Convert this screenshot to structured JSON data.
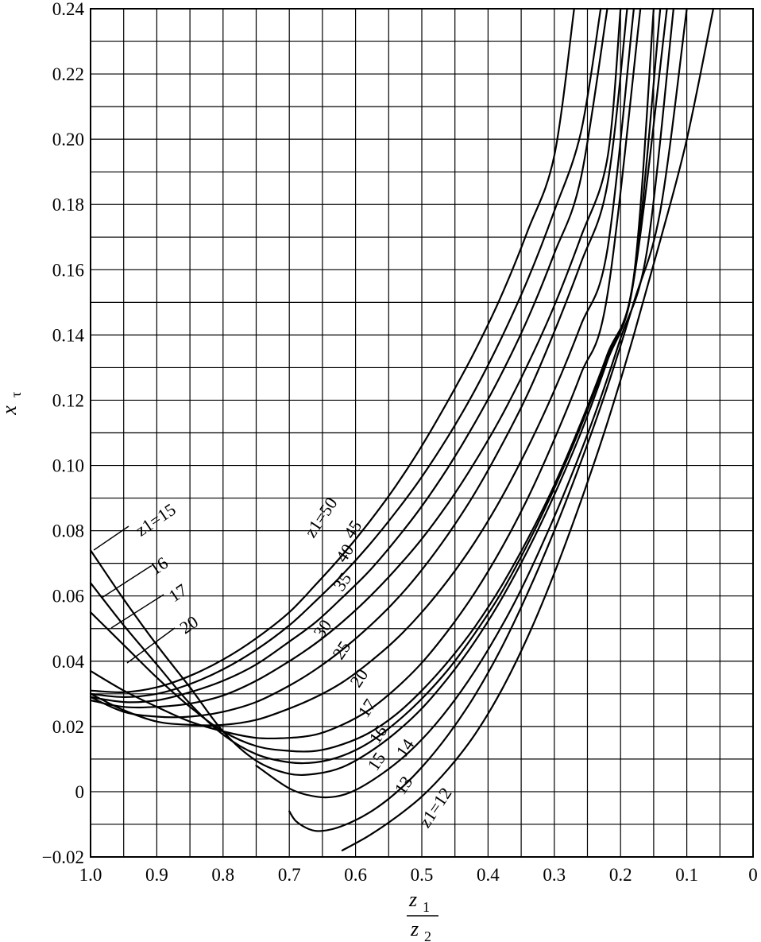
{
  "chart_data": {
    "type": "line",
    "title": "",
    "xlabel": {
      "num": "z",
      "num_sub": "1",
      "den": "z",
      "den_sub": "2"
    },
    "ylabel": {
      "base": "x",
      "sub": "τ"
    },
    "xlim": [
      1.0,
      0.0
    ],
    "ylim": [
      -0.02,
      0.24
    ],
    "x_reversed": true,
    "grid": true,
    "x_ticks": [
      "1.0",
      "0.9",
      "0.8",
      "0.7",
      "0.6",
      "0.5",
      "0.4",
      "0.3",
      "0.2",
      "0.1",
      "0"
    ],
    "y_ticks": [
      "0.24",
      "0.22",
      "0.20",
      "0.18",
      "0.16",
      "0.14",
      "0.12",
      "0.10",
      "0.08",
      "0.06",
      "0.04",
      "0.02",
      "0",
      "−0.02"
    ],
    "series": [
      {
        "name": "z1=12",
        "x": [
          0.62,
          0.58,
          0.54,
          0.5,
          0.46,
          0.42,
          0.38,
          0.34,
          0.3,
          0.26,
          0.22,
          0.18,
          0.14,
          0.1,
          0.06
        ],
        "y": [
          -0.018,
          -0.0135,
          -0.008,
          -0.0015,
          0.007,
          0.0175,
          0.031,
          0.0475,
          0.067,
          0.089,
          0.113,
          0.14,
          0.169,
          0.2,
          0.24
        ]
      },
      {
        "name": "13",
        "x": [
          0.7,
          0.69,
          0.67,
          0.65,
          0.62,
          0.58,
          0.54,
          0.5,
          0.46,
          0.42,
          0.38,
          0.34,
          0.3,
          0.26,
          0.22,
          0.18,
          0.14,
          0.1
        ],
        "y": [
          -0.006,
          -0.009,
          -0.0115,
          -0.012,
          -0.0105,
          -0.0065,
          -0.0005,
          0.0075,
          0.0175,
          0.0295,
          0.044,
          0.061,
          0.08,
          0.101,
          0.124,
          0.15,
          0.178,
          0.24
        ]
      },
      {
        "name": "14",
        "x": [
          0.75,
          0.7,
          0.66,
          0.63,
          0.6,
          0.56,
          0.52,
          0.48,
          0.44,
          0.4,
          0.36,
          0.32,
          0.28,
          0.24,
          0.2,
          0.16,
          0.12
        ],
        "y": [
          0.008,
          0.001,
          -0.0015,
          -0.0015,
          0.0005,
          0.0055,
          0.012,
          0.0205,
          0.031,
          0.0435,
          0.058,
          0.075,
          0.094,
          0.115,
          0.139,
          0.166,
          0.24
        ]
      },
      {
        "name": "15",
        "x": [
          1.0,
          0.95,
          0.9,
          0.85,
          0.8,
          0.75,
          0.7,
          0.66,
          0.62,
          0.58,
          0.54,
          0.5,
          0.46,
          0.42,
          0.38,
          0.34,
          0.3,
          0.26,
          0.22,
          0.18,
          0.13
        ],
        "y": [
          0.074,
          0.059,
          0.045,
          0.032,
          0.0185,
          0.0095,
          0.0055,
          0.0055,
          0.0075,
          0.012,
          0.018,
          0.0255,
          0.035,
          0.046,
          0.059,
          0.074,
          0.091,
          0.11,
          0.132,
          0.157,
          0.24
        ]
      },
      {
        "name": "16",
        "x": [
          1.0,
          0.95,
          0.9,
          0.85,
          0.8,
          0.75,
          0.7,
          0.66,
          0.62,
          0.58,
          0.54,
          0.5,
          0.46,
          0.42,
          0.38,
          0.34,
          0.3,
          0.26,
          0.22,
          0.18,
          0.14
        ],
        "y": [
          0.064,
          0.051,
          0.039,
          0.027,
          0.0175,
          0.0115,
          0.009,
          0.009,
          0.011,
          0.015,
          0.021,
          0.0285,
          0.0375,
          0.0485,
          0.061,
          0.076,
          0.093,
          0.112,
          0.133,
          0.157,
          0.24
        ]
      },
      {
        "name": "17",
        "x": [
          1.0,
          0.95,
          0.9,
          0.85,
          0.8,
          0.75,
          0.7,
          0.66,
          0.62,
          0.58,
          0.54,
          0.5,
          0.46,
          0.42,
          0.38,
          0.34,
          0.3,
          0.26,
          0.22,
          0.18,
          0.15
        ],
        "y": [
          0.055,
          0.045,
          0.035,
          0.026,
          0.0185,
          0.014,
          0.0125,
          0.0125,
          0.0145,
          0.018,
          0.0235,
          0.031,
          0.04,
          0.0505,
          0.063,
          0.0775,
          0.094,
          0.113,
          0.134,
          0.158,
          0.24
        ]
      },
      {
        "name": "20",
        "x": [
          1.0,
          0.95,
          0.9,
          0.85,
          0.8,
          0.75,
          0.7,
          0.66,
          0.62,
          0.58,
          0.54,
          0.5,
          0.46,
          0.42,
          0.38,
          0.34,
          0.3,
          0.26,
          0.22,
          0.17
        ],
        "y": [
          0.037,
          0.031,
          0.026,
          0.0215,
          0.0185,
          0.0165,
          0.0165,
          0.0175,
          0.0205,
          0.025,
          0.0315,
          0.0395,
          0.0495,
          0.061,
          0.0745,
          0.09,
          0.108,
          0.128,
          0.152,
          0.24
        ]
      },
      {
        "name": "25",
        "x": [
          1.0,
          0.95,
          0.9,
          0.85,
          0.8,
          0.75,
          0.7,
          0.66,
          0.62,
          0.58,
          0.54,
          0.5,
          0.46,
          0.42,
          0.38,
          0.34,
          0.3,
          0.26,
          0.22,
          0.18
        ],
        "y": [
          0.03,
          0.025,
          0.0215,
          0.0205,
          0.0205,
          0.022,
          0.0255,
          0.029,
          0.0335,
          0.0395,
          0.0465,
          0.055,
          0.065,
          0.0765,
          0.09,
          0.1055,
          0.123,
          0.143,
          0.166,
          0.24
        ]
      },
      {
        "name": "30",
        "x": [
          1.0,
          0.95,
          0.9,
          0.85,
          0.8,
          0.75,
          0.7,
          0.66,
          0.62,
          0.58,
          0.54,
          0.5,
          0.46,
          0.42,
          0.38,
          0.34,
          0.3,
          0.26,
          0.22,
          0.19
        ],
        "y": [
          0.029,
          0.0245,
          0.023,
          0.023,
          0.0245,
          0.0275,
          0.0325,
          0.0375,
          0.0435,
          0.0505,
          0.0585,
          0.068,
          0.079,
          0.0915,
          0.106,
          0.122,
          0.141,
          0.162,
          0.186,
          0.24
        ]
      },
      {
        "name": "35",
        "x": [
          1.0,
          0.95,
          0.9,
          0.85,
          0.8,
          0.75,
          0.7,
          0.66,
          0.62,
          0.58,
          0.54,
          0.5,
          0.46,
          0.42,
          0.38,
          0.34,
          0.3,
          0.26,
          0.22,
          0.2
        ],
        "y": [
          0.028,
          0.026,
          0.026,
          0.027,
          0.0295,
          0.034,
          0.04,
          0.0455,
          0.052,
          0.0595,
          0.068,
          0.0775,
          0.0885,
          0.101,
          0.115,
          0.131,
          0.149,
          0.17,
          0.194,
          0.24
        ]
      },
      {
        "name": "40",
        "x": [
          1.0,
          0.95,
          0.9,
          0.85,
          0.8,
          0.75,
          0.7,
          0.66,
          0.62,
          0.58,
          0.54,
          0.5,
          0.46,
          0.42,
          0.38,
          0.34,
          0.3,
          0.26,
          0.22
        ],
        "y": [
          0.029,
          0.0275,
          0.028,
          0.0305,
          0.034,
          0.039,
          0.046,
          0.052,
          0.0595,
          0.0675,
          0.077,
          0.0875,
          0.0995,
          0.113,
          0.128,
          0.145,
          0.165,
          0.188,
          0.24
        ]
      },
      {
        "name": "45",
        "x": [
          1.0,
          0.95,
          0.9,
          0.85,
          0.8,
          0.75,
          0.7,
          0.66,
          0.62,
          0.58,
          0.54,
          0.5,
          0.46,
          0.42,
          0.38,
          0.34,
          0.3,
          0.26,
          0.23
        ],
        "y": [
          0.03,
          0.029,
          0.03,
          0.033,
          0.0375,
          0.0435,
          0.051,
          0.0585,
          0.0665,
          0.0755,
          0.0855,
          0.0965,
          0.109,
          0.123,
          0.139,
          0.157,
          0.178,
          0.202,
          0.24
        ]
      },
      {
        "name": "z1=50",
        "x": [
          1.0,
          0.95,
          0.9,
          0.85,
          0.8,
          0.75,
          0.7,
          0.66,
          0.62,
          0.58,
          0.54,
          0.5,
          0.46,
          0.42,
          0.38,
          0.34,
          0.3,
          0.27
        ],
        "y": [
          0.031,
          0.0305,
          0.032,
          0.0355,
          0.0405,
          0.047,
          0.055,
          0.0635,
          0.0725,
          0.0825,
          0.0935,
          0.106,
          0.12,
          0.135,
          0.152,
          0.172,
          0.195,
          0.24
        ]
      }
    ],
    "labels": [
      "z1=15",
      "16",
      "17",
      "20",
      "z1=50",
      "45",
      "40",
      "35",
      "30",
      "25",
      "20",
      "17",
      "16",
      "15",
      "14",
      "13",
      "z1=12"
    ]
  }
}
